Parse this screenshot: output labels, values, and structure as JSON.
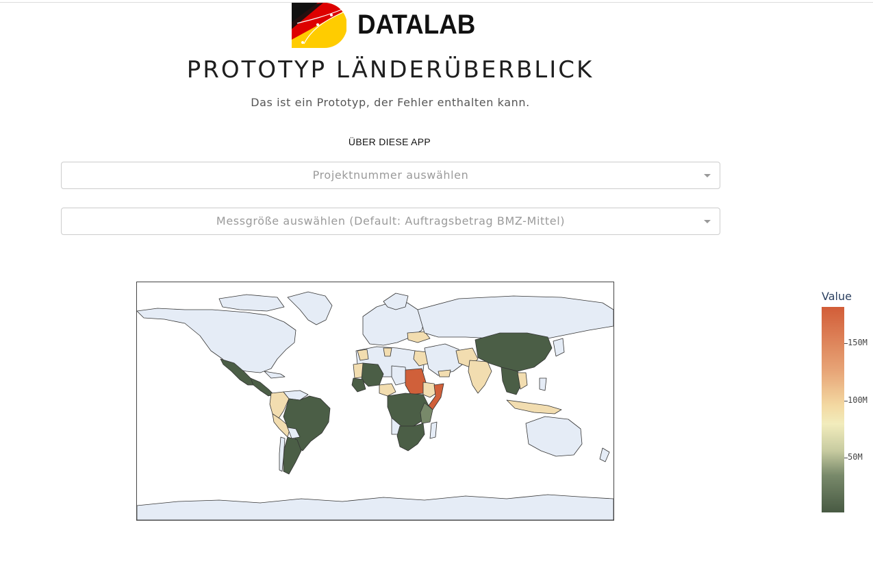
{
  "header": {
    "logo_text": "DATALAB",
    "title": "PROTOTYP LÄNDERÜBERBLICK",
    "subtitle": "Das ist ein Prototyp, der Fehler enthalten kann.",
    "about_link": "ÜBER DIESE APP"
  },
  "filters": {
    "project_placeholder": "Projektnummer auswählen",
    "metric_placeholder": "Messgröße auswählen (Default: Auftragsbetrag BMZ-Mittel)"
  },
  "colorbar": {
    "title": "Value",
    "ticks": [
      "150M",
      "100M",
      "50M"
    ],
    "colors": [
      "#485a43",
      "#f2ecbc",
      "#d25d38"
    ]
  },
  "colors": {
    "land_default": "#e5ecf6",
    "low": "#4b5e46",
    "mid": "#f2ddb0",
    "high": "#d0603a"
  }
}
